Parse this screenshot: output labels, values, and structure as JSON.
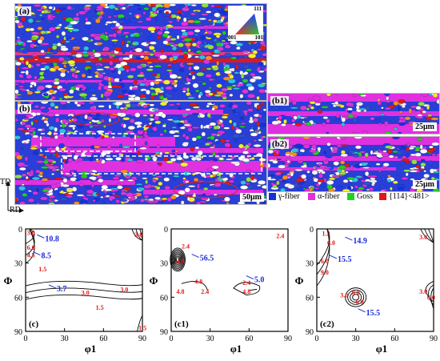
{
  "ebsd": {
    "panel_a_label": "(a)",
    "panel_b_label": "(b)",
    "panel_b1_label": "(b1)",
    "panel_b2_label": "(b2)",
    "scale_main": "50μm",
    "scale_b1": "25μm",
    "scale_b2": "25μm",
    "ipf_labels": {
      "top": "111",
      "left": "001",
      "right": "101"
    },
    "axes": {
      "vertical": "TD",
      "horizontal": "RD"
    },
    "legend": [
      {
        "label": "γ-fiber",
        "color": "#1530e0"
      },
      {
        "label": "α-fiber",
        "color": "#e030e0"
      },
      {
        "label": "Goss",
        "color": "#20d020"
      },
      {
        "label": "{114}<481>",
        "color": "#e01818"
      }
    ]
  },
  "odf_plots": [
    {
      "panel_label": "(c)",
      "xlabel": "φ1",
      "ylabel": "Φ",
      "xticks": [
        "0",
        "30",
        "60",
        "90"
      ],
      "yticks": [
        "0",
        "30",
        "60",
        "90"
      ],
      "xlim": [
        0,
        90
      ],
      "ylim": [
        0,
        90
      ],
      "blue_labels": [
        {
          "text": "10.8",
          "phi1": 15,
          "Phi": 8
        },
        {
          "text": "8.5",
          "phi1": 12,
          "Phi": 23
        },
        {
          "text": "3.7",
          "phi1": 24,
          "Phi": 52
        }
      ],
      "red_labels": [
        {
          "text": "3.0",
          "phi1": 1,
          "Phi": 3
        },
        {
          "text": "6.0",
          "phi1": 1,
          "Phi": 16
        },
        {
          "text": "4.5",
          "phi1": 1,
          "Phi": 23
        },
        {
          "text": "1.5",
          "phi1": 10,
          "Phi": 35
        },
        {
          "text": "3.0",
          "phi1": 43,
          "Phi": 56
        },
        {
          "text": "1.5",
          "phi1": 54,
          "Phi": 69
        },
        {
          "text": "3.0",
          "phi1": 73,
          "Phi": 53
        },
        {
          "text": "3.0",
          "phi1": 84,
          "Phi": 5
        },
        {
          "text": "1.5",
          "phi1": 87,
          "Phi": 87
        }
      ]
    },
    {
      "panel_label": "(c1)",
      "xlabel": "φ1",
      "ylabel": "Φ",
      "xticks": [
        "0",
        "30",
        "60",
        "90"
      ],
      "yticks": [
        "0",
        "30",
        "60",
        "90"
      ],
      "xlim": [
        0,
        90
      ],
      "ylim": [
        0,
        90
      ],
      "blue_labels": [
        {
          "text": "56.5",
          "phi1": 22,
          "Phi": 25
        },
        {
          "text": "5.0",
          "phi1": 64,
          "Phi": 44
        }
      ],
      "red_labels": [
        {
          "text": "2.4",
          "phi1": 8,
          "Phi": 15
        },
        {
          "text": "4.8",
          "phi1": 4,
          "Phi": 28
        },
        {
          "text": "4.8",
          "phi1": 18,
          "Phi": 46
        },
        {
          "text": "4.8",
          "phi1": 4,
          "Phi": 55
        },
        {
          "text": "2.4",
          "phi1": 23,
          "Phi": 55
        },
        {
          "text": "2.4",
          "phi1": 55,
          "Phi": 47
        },
        {
          "text": "4.8",
          "phi1": 55,
          "Phi": 55
        },
        {
          "text": "2.4",
          "phi1": 81,
          "Phi": 6
        }
      ]
    },
    {
      "panel_label": "(c2)",
      "xlabel": "φ1",
      "ylabel": "Φ",
      "xticks": [
        "0",
        "30",
        "60",
        "90"
      ],
      "yticks": [
        "0",
        "30",
        "60",
        "90"
      ],
      "xlim": [
        0,
        90
      ],
      "ylim": [
        0,
        90
      ],
      "blue_labels": [
        {
          "text": "14.9",
          "phi1": 28,
          "Phi": 10
        },
        {
          "text": "15.5",
          "phi1": 16,
          "Phi": 26
        },
        {
          "text": "15.5",
          "phi1": 38,
          "Phi": 73
        }
      ],
      "red_labels": [
        {
          "text": "1.2",
          "phi1": 4,
          "Phi": 4
        },
        {
          "text": "6.0",
          "phi1": 8,
          "Phi": 12
        },
        {
          "text": "6.0",
          "phi1": 3,
          "Phi": 28
        },
        {
          "text": "9.0",
          "phi1": 3,
          "Phi": 38
        },
        {
          "text": "3.0",
          "phi1": 18,
          "Phi": 58
        },
        {
          "text": "9.0",
          "phi1": 27,
          "Phi": 56
        },
        {
          "text": "6.0",
          "phi1": 30,
          "Phi": 64
        },
        {
          "text": "3.0",
          "phi1": 79,
          "Phi": 7
        },
        {
          "text": "3.0",
          "phi1": 79,
          "Phi": 55
        },
        {
          "text": "6.0",
          "phi1": 85,
          "Phi": 60
        }
      ]
    }
  ]
}
